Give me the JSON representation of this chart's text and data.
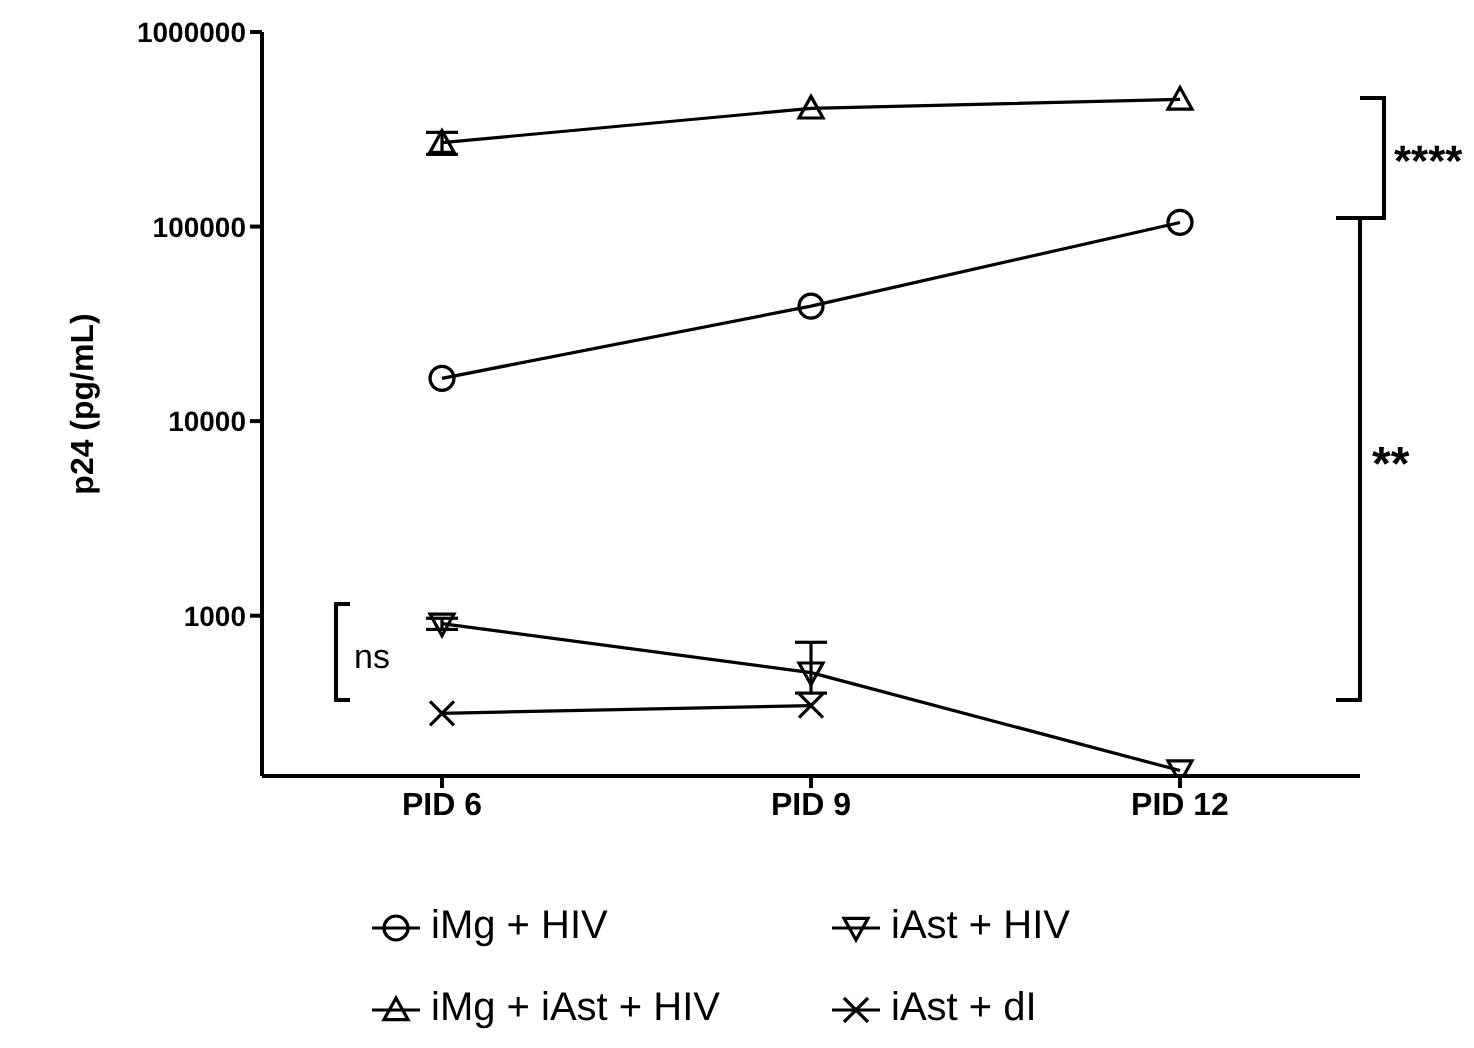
{
  "chart_data": {
    "type": "line",
    "ylabel": "p24 (pg/mL)",
    "categories": [
      "PID 6",
      "PID 9",
      "PID 12"
    ],
    "log": "y",
    "ylim": [
      150,
      1000000
    ],
    "yticks": [
      1000,
      10000,
      100000,
      1000000
    ],
    "grid": false,
    "legend": "bottom",
    "line_style": "solid",
    "series": [
      {
        "name": "iMg + HIV",
        "color": "#000000",
        "marker": "circle",
        "values": [
          16600,
          39000,
          105000
        ],
        "errors": [
          null,
          null,
          null
        ]
      },
      {
        "name": "iAst + HIV",
        "color": "#000000",
        "marker": "triangle-down",
        "values": [
          910,
          510,
          160
        ],
        "errors": [
          60,
          [
            400,
            730
          ],
          null
        ]
      },
      {
        "name": "iMg + iAst + HIV",
        "color": "#000000",
        "marker": "triangle",
        "values": [
          270000,
          405000,
          450000
        ],
        "errors": [
          35000,
          null,
          null
        ]
      },
      {
        "name": "iAst + dI",
        "color": "#000000",
        "marker": "cross",
        "values": [
          315,
          345,
          null
        ]
      }
    ],
    "annotations": [
      "****",
      "**",
      "ns"
    ]
  }
}
